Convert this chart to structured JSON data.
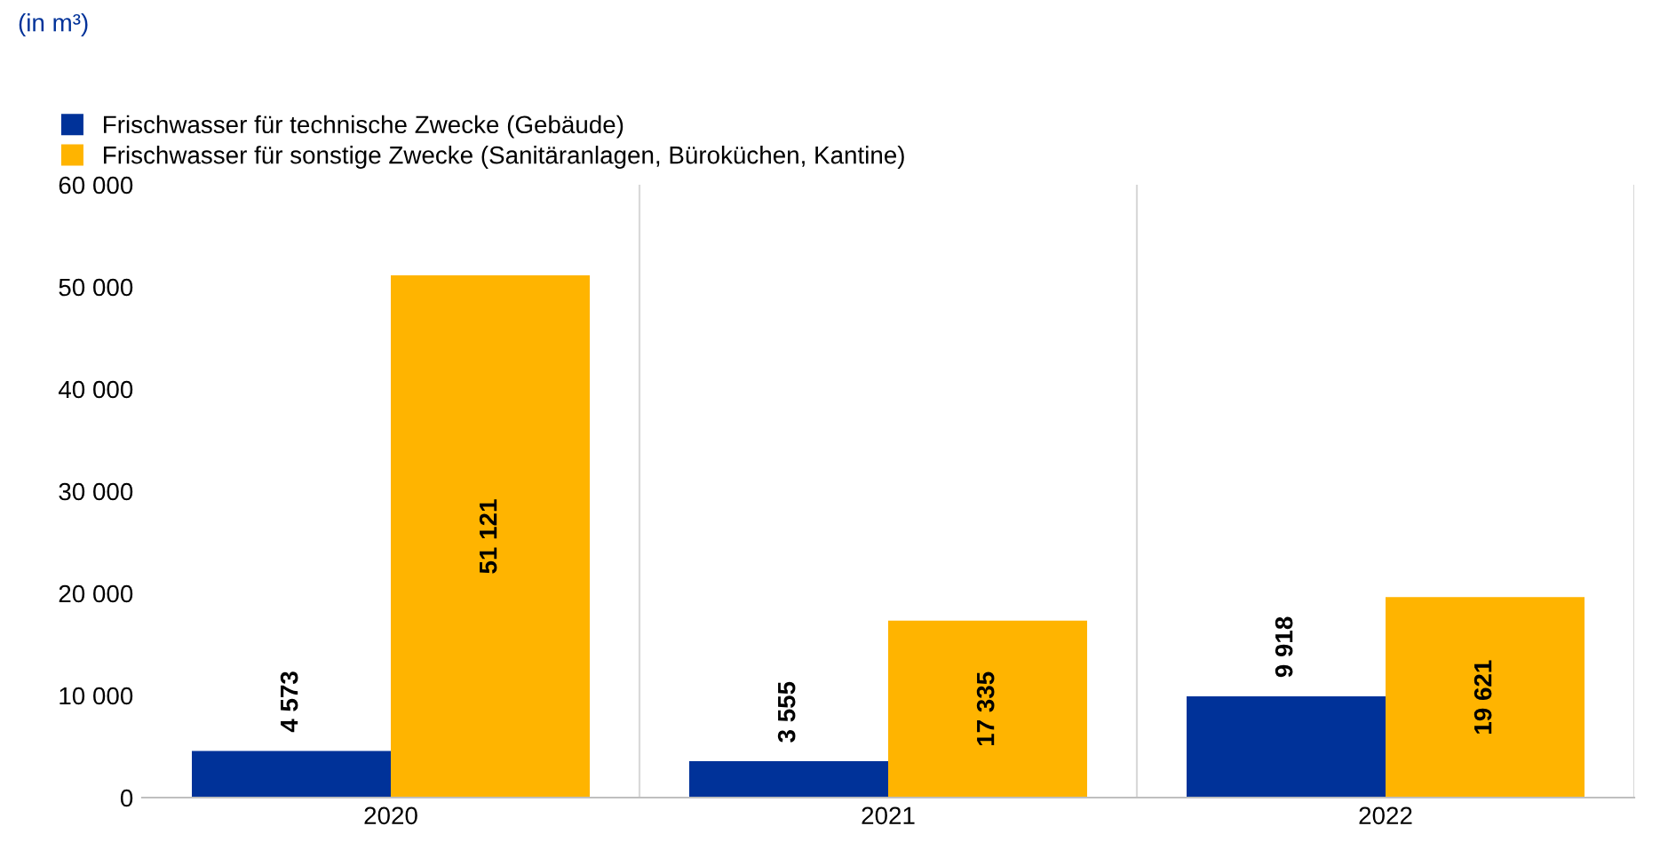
{
  "chart_data": {
    "type": "bar",
    "categories": [
      "2020",
      "2021",
      "2022"
    ],
    "series": [
      {
        "name": "Frischwasser für technische Zwecke (Gebäude)",
        "color": "#003299",
        "values": [
          4573,
          3555,
          9918
        ],
        "value_labels": [
          "4 573",
          "3 555",
          "9 918"
        ]
      },
      {
        "name": "Frischwasser für sonstige Zwecke (Sanitäranlagen, Büroküchen, Kantine)",
        "color": "#ffb400",
        "values": [
          51121,
          17335,
          19621
        ],
        "value_labels": [
          "51 121",
          "17 335",
          "19 621"
        ]
      }
    ],
    "ylim": [
      0,
      60000
    ],
    "yticks": [
      {
        "value": 0,
        "label": "0"
      },
      {
        "value": 10000,
        "label": "10 000"
      },
      {
        "value": 20000,
        "label": "20 000"
      },
      {
        "value": 30000,
        "label": "30 000"
      },
      {
        "value": 40000,
        "label": "40 000"
      },
      {
        "value": 50000,
        "label": "50 000"
      },
      {
        "value": 60000,
        "label": "60 000"
      }
    ],
    "grid": "x",
    "legend": "top left",
    "annotations": [
      "(in m³)"
    ]
  }
}
